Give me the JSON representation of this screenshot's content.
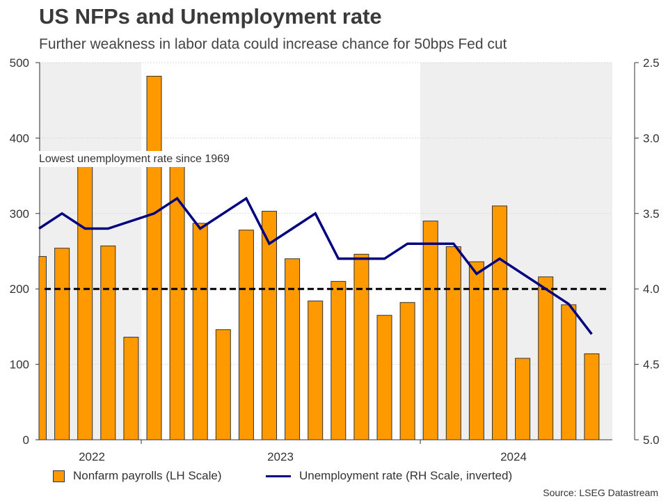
{
  "title": "US NFPs and Unemployment rate",
  "subtitle": "Further weakness in labor data could increase chance for 50bps Fed cut",
  "source": "Source: LSEG Datastream",
  "colors": {
    "bar": "#FF9900",
    "line": "#000080",
    "shade": "#EFEFEF",
    "reference": "#000000"
  },
  "chart_data": {
    "type": "bar",
    "title": "US NFPs and Unemployment rate",
    "subtitle": "Further weakness in labor data could increase chance for 50bps Fed cut",
    "annotation": "Lowest unemployment rate since 1969",
    "year_labels": [
      "2022",
      "2023",
      "2024"
    ],
    "left_axis": {
      "label": "Nonfarm payrolls (LH Scale)",
      "range": [
        0,
        500
      ],
      "ticks": [
        "0",
        "100",
        "200",
        "300",
        "400",
        "500"
      ]
    },
    "right_axis": {
      "label": "Unemployment rate (RH Scale, inverted)",
      "range": [
        2.5,
        5.0
      ],
      "inverted": true,
      "ticks": [
        "2.5",
        "3.0",
        "3.5",
        "4.0",
        "4.5",
        "5.0"
      ]
    },
    "reference_line": {
      "axis": "left",
      "value": 200,
      "style": "dashed"
    },
    "shaded_years": [
      "2022",
      "2024"
    ],
    "grid": true,
    "legend_position": "bottom",
    "series": [
      {
        "name": "Nonfarm payrolls (LH Scale)",
        "type": "bar",
        "values": [
          243,
          254,
          363,
          257,
          136,
          482,
          364,
          287,
          146,
          278,
          303,
          240,
          184,
          210,
          246,
          165,
          182,
          290,
          256,
          236,
          310,
          108,
          216,
          179,
          114
        ]
      },
      {
        "name": "Unemployment rate (RH Scale, inverted)",
        "type": "line",
        "values": [
          3.6,
          3.5,
          3.6,
          3.6,
          null,
          3.5,
          3.4,
          3.6,
          3.5,
          3.4,
          3.7,
          3.6,
          3.5,
          3.8,
          3.8,
          3.8,
          3.7,
          3.7,
          3.7,
          3.9,
          3.8,
          3.9,
          4.0,
          4.1,
          4.3
        ]
      }
    ]
  }
}
